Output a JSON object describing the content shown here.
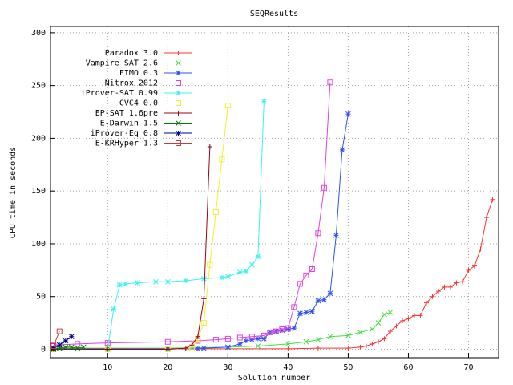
{
  "chart_data": {
    "type": "line",
    "title": "SEQResults",
    "x_label": "Solution number",
    "y_label": "CPU time in seconds",
    "xlim": [
      0.5,
      75
    ],
    "ylim": [
      -8,
      306
    ],
    "xticks": [
      10,
      20,
      30,
      40,
      50,
      60,
      70
    ],
    "yticks": [
      0,
      50,
      100,
      150,
      200,
      250,
      300
    ],
    "grid": true,
    "legend": "top-left",
    "series": [
      {
        "name": "Paradox 3.0",
        "color": "#ff3030",
        "marker": "plus",
        "x": [
          1,
          10,
          20,
          30,
          40,
          45,
          50,
          52,
          53,
          54,
          55,
          56,
          57,
          58,
          59,
          60,
          61,
          62,
          63,
          64,
          65,
          66,
          67,
          68,
          69,
          70,
          71,
          72,
          73,
          74
        ],
        "values": [
          0.5,
          0.5,
          0.5,
          0.5,
          0.5,
          1,
          1,
          2,
          3,
          5,
          7,
          10,
          17,
          22,
          27,
          29,
          32,
          32,
          44,
          50,
          55,
          59,
          59,
          63,
          64,
          75,
          79,
          95,
          125,
          142
        ]
      },
      {
        "name": "Vampire-SAT 2.6",
        "color": "#40e040",
        "marker": "cross",
        "x": [
          1,
          10,
          20,
          30,
          35,
          40,
          43,
          45,
          47,
          50,
          52,
          54,
          55,
          56,
          57
        ],
        "values": [
          1,
          1,
          1,
          2,
          3,
          5,
          7,
          9,
          12,
          13,
          16,
          19,
          25,
          33,
          35
        ]
      },
      {
        "name": "FIMO 0.3",
        "color": "#3050f0",
        "marker": "star",
        "x": [
          1,
          10,
          20,
          25,
          26,
          30,
          32,
          33,
          34,
          35,
          36,
          37,
          38,
          39,
          40,
          41,
          42,
          43,
          44,
          45,
          46,
          47,
          48,
          49,
          50
        ],
        "values": [
          0.5,
          0.5,
          0.5,
          0.5,
          1,
          2,
          5,
          8,
          9,
          10,
          10,
          16,
          17,
          18,
          19,
          20,
          34,
          35,
          36,
          46,
          47,
          53,
          108,
          189,
          223
        ]
      },
      {
        "name": "Nitrox 2012",
        "color": "#e040e0",
        "marker": "square",
        "x": [
          1,
          5,
          10,
          20,
          25,
          28,
          30,
          32,
          34,
          36,
          37,
          38,
          39,
          40,
          41,
          42,
          43,
          44,
          45,
          46,
          47
        ],
        "values": [
          4,
          5,
          6,
          7,
          8,
          9,
          10,
          11,
          12,
          13,
          16,
          17,
          19,
          20,
          40,
          62,
          70,
          76,
          110,
          153,
          253
        ]
      },
      {
        "name": "iProver-SAT 0.99",
        "color": "#40f0f0",
        "marker": "star",
        "x": [
          1,
          10,
          11,
          12,
          13,
          15,
          18,
          20,
          23,
          26,
          29,
          30,
          32,
          33,
          34,
          35,
          36
        ],
        "values": [
          0,
          0,
          38,
          61,
          62,
          63,
          64,
          64,
          65,
          67,
          68,
          69,
          73,
          74,
          80,
          88,
          235
        ]
      },
      {
        "name": "CVC4 0.0",
        "color": "#f0f030",
        "marker": "square",
        "x": [
          1,
          10,
          20,
          24,
          25,
          26,
          27,
          28,
          29,
          30
        ],
        "values": [
          0,
          0,
          0,
          1,
          10,
          25,
          80,
          130,
          180,
          231
        ]
      },
      {
        "name": "EP-SAT 1.6pre",
        "color": "#a00010",
        "marker": "plus",
        "x": [
          1,
          10,
          20,
          23,
          24,
          25,
          26,
          27
        ],
        "values": [
          0,
          0,
          0,
          1,
          4,
          12,
          48,
          192
        ]
      },
      {
        "name": "E-Darwin 1.5",
        "color": "#008000",
        "marker": "cross",
        "x": [
          1,
          2,
          3,
          4,
          5,
          6
        ],
        "values": [
          0,
          1,
          2,
          2,
          1,
          2
        ]
      },
      {
        "name": "iProver-Eq 0.8",
        "color": "#000090",
        "marker": "star",
        "x": [
          1,
          2,
          3,
          4
        ],
        "values": [
          1,
          4,
          8,
          12
        ]
      },
      {
        "name": "E-KRHyper 1.3",
        "color": "#c04040",
        "marker": "square",
        "x": [
          1,
          2
        ],
        "values": [
          3,
          17
        ]
      }
    ]
  }
}
